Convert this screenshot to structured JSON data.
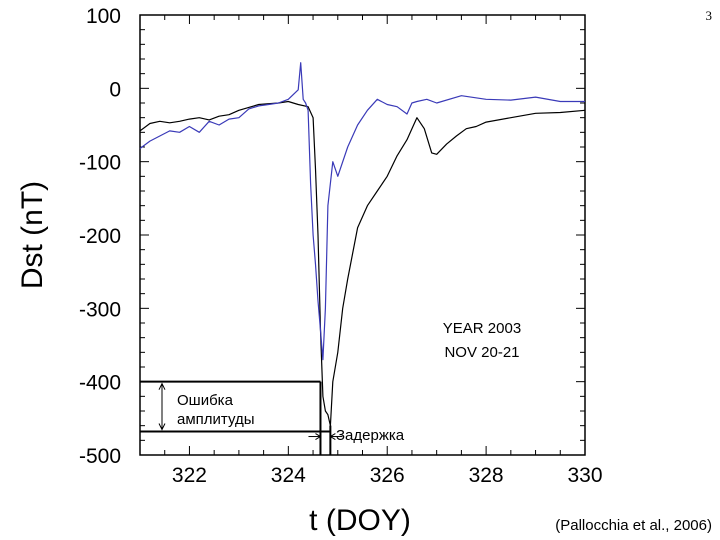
{
  "slide_number": "3",
  "citation": "(Pallocchia et al., 2006)",
  "colors": {
    "observed": "#000000",
    "predicted": "#3a3ab8",
    "frame": "#000000"
  },
  "chart_data": {
    "type": "line",
    "title": "",
    "xlabel": "t (DOY)",
    "ylabel": "Dst (nT)",
    "xlim": [
      321,
      330
    ],
    "ylim": [
      -500,
      100
    ],
    "x_ticks": [
      322,
      324,
      326,
      328,
      330
    ],
    "y_ticks": [
      100,
      0,
      -100,
      -200,
      -300,
      -400,
      -500
    ],
    "grid": false,
    "legend": "none",
    "annotation_box": [
      "YEAR 2003",
      "NOV 20-21"
    ],
    "annotations": {
      "amplitude_error": [
        "Ошибка",
        "амплитуды"
      ],
      "delay": "Задержка",
      "amplitude_levels": [
        -400,
        -468
      ],
      "delay_range": [
        324.65,
        324.85
      ]
    },
    "series": [
      {
        "color": "#000000",
        "x": [
          321.0,
          321.2,
          321.4,
          321.6,
          321.8,
          322.0,
          322.2,
          322.4,
          322.6,
          322.8,
          323.0,
          323.2,
          323.4,
          323.6,
          323.8,
          324.0,
          324.2,
          324.4,
          324.5,
          324.55,
          324.6,
          324.65,
          324.7,
          324.75,
          324.8,
          324.85,
          324.9,
          325.0,
          325.1,
          325.2,
          325.4,
          325.6,
          325.8,
          326.0,
          326.2,
          326.4,
          326.6,
          326.75,
          326.9,
          327.0,
          327.2,
          327.4,
          327.6,
          327.8,
          328.0,
          328.5,
          329.0,
          329.5,
          330.0
        ],
        "values": [
          -58,
          -48,
          -45,
          -47,
          -45,
          -42,
          -40,
          -43,
          -38,
          -36,
          -30,
          -26,
          -22,
          -21,
          -20,
          -18,
          -22,
          -25,
          -40,
          -110,
          -200,
          -330,
          -420,
          -440,
          -445,
          -460,
          -400,
          -360,
          -300,
          -260,
          -190,
          -160,
          -140,
          -120,
          -92,
          -70,
          -40,
          -55,
          -88,
          -90,
          -76,
          -65,
          -55,
          -52,
          -46,
          -40,
          -34,
          -33,
          -30
        ]
      },
      {
        "color": "#3a3ab8",
        "x": [
          321.0,
          321.2,
          321.4,
          321.6,
          321.8,
          322.0,
          322.2,
          322.4,
          322.6,
          322.8,
          323.0,
          323.2,
          323.4,
          323.6,
          323.8,
          324.0,
          324.2,
          324.25,
          324.3,
          324.35,
          324.4,
          324.45,
          324.5,
          324.55,
          324.6,
          324.65,
          324.7,
          324.75,
          324.8,
          324.9,
          325.0,
          325.2,
          325.4,
          325.6,
          325.8,
          326.0,
          326.2,
          326.4,
          326.5,
          326.6,
          326.8,
          327.0,
          327.5,
          328.0,
          328.5,
          329.0,
          329.5,
          330.0
        ],
        "values": [
          -82,
          -72,
          -65,
          -58,
          -60,
          -52,
          -60,
          -45,
          -50,
          -42,
          -40,
          -28,
          -24,
          -22,
          -20,
          -15,
          -2,
          35,
          -15,
          -20,
          -30,
          -130,
          -200,
          -240,
          -290,
          -330,
          -370,
          -300,
          -160,
          -100,
          -120,
          -80,
          -50,
          -30,
          -15,
          -22,
          -25,
          -35,
          -20,
          -18,
          -15,
          -20,
          -10,
          -15,
          -16,
          -12,
          -18,
          -18
        ]
      }
    ]
  }
}
